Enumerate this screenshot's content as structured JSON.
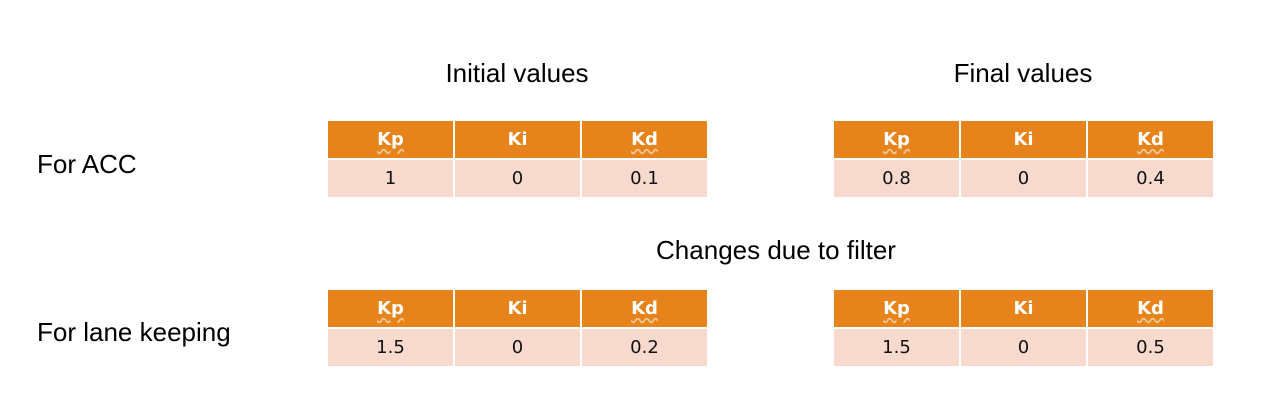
{
  "headings": {
    "initial": "Initial values",
    "final": "Final values",
    "changes": "Changes due to filter"
  },
  "rows": {
    "acc": "For ACC",
    "lane": "For lane keeping"
  },
  "columns": [
    "Kp",
    "Ki",
    "Kd"
  ],
  "tables": {
    "acc_initial": [
      "1",
      "0",
      "0.1"
    ],
    "acc_final": [
      "0.8",
      "0",
      "0.4"
    ],
    "lane_initial": [
      "1.5",
      "0",
      "0.2"
    ],
    "lane_final": [
      "1.5",
      "0",
      "0.5"
    ]
  },
  "colors": {
    "header_bg": "#e6831a",
    "cell_bg": "#f7d9cd"
  }
}
